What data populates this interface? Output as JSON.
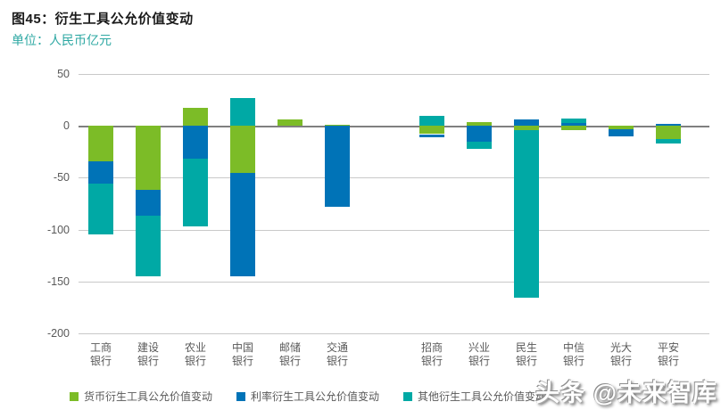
{
  "header": {
    "title": "图45：衍生工具公允价值变动",
    "unit": "单位：人民币亿元"
  },
  "watermark": "头条 @未来智库",
  "colors": {
    "currency": "#7cbc27",
    "interest": "#0073b7",
    "other": "#00a9a5",
    "grid": "#c9c9c9",
    "zero_line": "#7f7f7f",
    "axis_text": "#595959",
    "unit_text": "#2ea8a3",
    "title_text": "#1a1a1a"
  },
  "chart_data": {
    "type": "bar",
    "stacked": true,
    "title": "图45：衍生工具公允价值变动",
    "unit_label": "单位：人民币亿元",
    "xlabel": "",
    "ylabel": "人民币亿元",
    "ylim": [
      -200,
      50
    ],
    "yticks": [
      50,
      0,
      -50,
      -100,
      -150,
      -200
    ],
    "grid": true,
    "legend_position": "bottom",
    "group_gap_after_index": 5,
    "categories": [
      "工商银行",
      "建设银行",
      "农业银行",
      "中国银行",
      "邮储银行",
      "交通银行",
      "招商银行",
      "兴业银行",
      "民生银行",
      "中信银行",
      "光大银行",
      "平安银行"
    ],
    "series": [
      {
        "name": "货币衍生工具公允价值变动",
        "color_key": "currency",
        "values": [
          -34,
          -62,
          17,
          -45,
          6,
          1,
          -8,
          4,
          -4,
          -4,
          -3,
          -13
        ]
      },
      {
        "name": "利率衍生工具公允价值变动",
        "color_key": "interest",
        "values": [
          -22,
          -25,
          -32,
          -100,
          0,
          -78,
          -3,
          -15,
          6,
          3,
          -7,
          2
        ]
      },
      {
        "name": "其他衍生工具公允价值变动",
        "color_key": "other",
        "values": [
          -49,
          -58,
          -65,
          27,
          0,
          0,
          10,
          -7,
          -162,
          4,
          0,
          -4
        ]
      }
    ]
  }
}
